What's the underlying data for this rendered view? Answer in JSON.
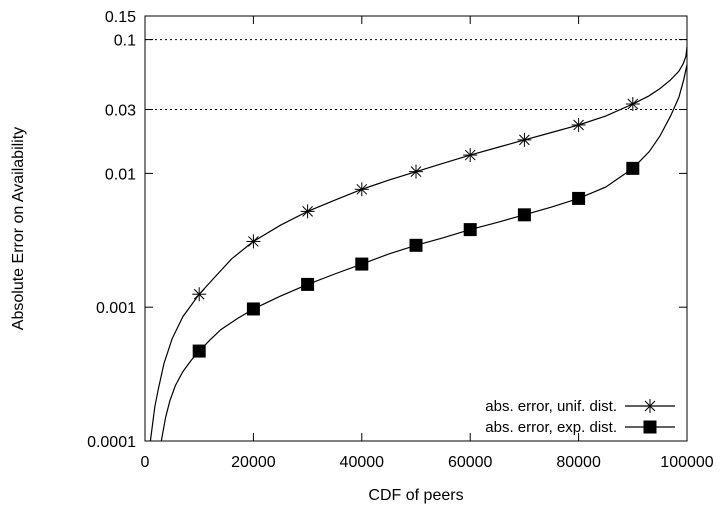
{
  "chart_data": {
    "type": "line",
    "title": "",
    "xlabel": "CDF of peers",
    "ylabel": "Absolute Error on Availability",
    "xlim": [
      0,
      100000
    ],
    "ylim": [
      0.0001,
      0.15
    ],
    "yscale": "log",
    "grid": false,
    "reference_lines_y": [
      0.1,
      0.03
    ],
    "xticks": [
      0,
      20000,
      40000,
      60000,
      80000,
      100000
    ],
    "xtick_labels": [
      "0",
      "20000",
      "40000",
      "60000",
      "80000",
      "100000"
    ],
    "yticks": [
      0.0001,
      0.001,
      0.01,
      0.03,
      0.1,
      0.15
    ],
    "ytick_labels": [
      "0.0001",
      "0.001",
      "0.01",
      "0.03",
      "0.1",
      "0.15"
    ],
    "legend_position": "bottom-right",
    "series": [
      {
        "name": "abs. error, unif. dist.",
        "marker": "asterisk",
        "marker_x": [
          10000,
          20000,
          30000,
          40000,
          50000,
          60000,
          70000,
          80000,
          90000
        ],
        "marker_y": [
          0.00125,
          0.0031,
          0.0052,
          0.0076,
          0.0103,
          0.0137,
          0.0178,
          0.023,
          0.033
        ],
        "curve": [
          [
            1000,
            0.0001
          ],
          [
            1800,
            0.00018
          ],
          [
            2500,
            0.00025
          ],
          [
            3500,
            0.00038
          ],
          [
            5000,
            0.00058
          ],
          [
            7000,
            0.00085
          ],
          [
            10000,
            0.00125
          ],
          [
            13000,
            0.0017
          ],
          [
            16000,
            0.0023
          ],
          [
            20000,
            0.0031
          ],
          [
            25000,
            0.0041
          ],
          [
            30000,
            0.0052
          ],
          [
            35000,
            0.0063
          ],
          [
            40000,
            0.0076
          ],
          [
            45000,
            0.0089
          ],
          [
            50000,
            0.0103
          ],
          [
            55000,
            0.0119
          ],
          [
            60000,
            0.0137
          ],
          [
            65000,
            0.0156
          ],
          [
            70000,
            0.0178
          ],
          [
            75000,
            0.0202
          ],
          [
            80000,
            0.023
          ],
          [
            85000,
            0.0268
          ],
          [
            90000,
            0.033
          ],
          [
            93000,
            0.038
          ],
          [
            95000,
            0.043
          ],
          [
            97000,
            0.05
          ],
          [
            98500,
            0.058
          ],
          [
            99300,
            0.066
          ],
          [
            99800,
            0.075
          ],
          [
            100000,
            0.088
          ]
        ]
      },
      {
        "name": "abs. error, exp. dist.",
        "marker": "filled-square",
        "marker_x": [
          10000,
          20000,
          30000,
          40000,
          50000,
          60000,
          70000,
          80000,
          90000
        ],
        "marker_y": [
          0.00047,
          0.00097,
          0.00148,
          0.0021,
          0.0029,
          0.0038,
          0.0049,
          0.0065,
          0.0109
        ],
        "curve": [
          [
            3000,
            0.0001
          ],
          [
            3800,
            0.00015
          ],
          [
            4600,
            0.0002
          ],
          [
            5600,
            0.00026
          ],
          [
            7000,
            0.00033
          ],
          [
            8500,
            0.0004
          ],
          [
            10000,
            0.00047
          ],
          [
            12000,
            0.00057
          ],
          [
            14000,
            0.00068
          ],
          [
            17000,
            0.00082
          ],
          [
            20000,
            0.00097
          ],
          [
            25000,
            0.00121
          ],
          [
            30000,
            0.00148
          ],
          [
            35000,
            0.00177
          ],
          [
            40000,
            0.0021
          ],
          [
            45000,
            0.0025
          ],
          [
            50000,
            0.0029
          ],
          [
            55000,
            0.0033
          ],
          [
            60000,
            0.0038
          ],
          [
            65000,
            0.0043
          ],
          [
            70000,
            0.0049
          ],
          [
            75000,
            0.0056
          ],
          [
            80000,
            0.0065
          ],
          [
            85000,
            0.0079
          ],
          [
            90000,
            0.0109
          ],
          [
            93000,
            0.0145
          ],
          [
            95000,
            0.019
          ],
          [
            97000,
            0.027
          ],
          [
            98500,
            0.037
          ],
          [
            99400,
            0.05
          ],
          [
            100000,
            0.065
          ]
        ]
      }
    ]
  }
}
